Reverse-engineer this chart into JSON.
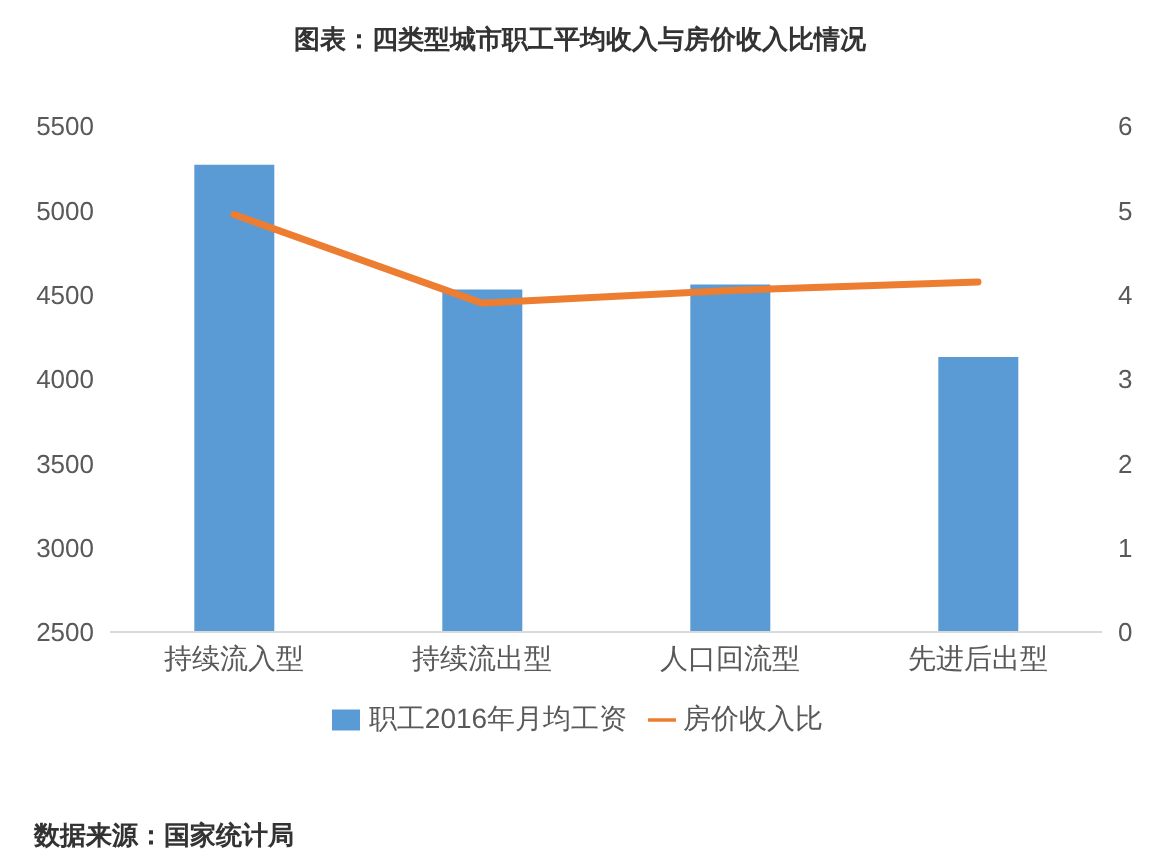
{
  "chart_data": {
    "type": "bar",
    "title": "图表：四类型城市职工平均收入与房价收入比情况",
    "categories": [
      "持续流入型",
      "持续流出型",
      "人口回流型",
      "先进后出型"
    ],
    "series": [
      {
        "name": "职工2016年月均工资",
        "color": "#5b9bd5",
        "values": [
          5270,
          4530,
          4560,
          4130
        ]
      },
      {
        "name": "房价收入比",
        "type": "line",
        "axis": "y2",
        "color": "#ed7d31",
        "values": [
          4.95,
          3.9,
          4.05,
          4.15
        ]
      }
    ],
    "ylim": [
      2500,
      5500
    ],
    "yticks": [
      2500,
      3000,
      3500,
      4000,
      4500,
      5000,
      5500
    ],
    "y2lim": [
      0,
      6
    ],
    "y2ticks": [
      0,
      1,
      2,
      3,
      4,
      5,
      6
    ],
    "grid": false,
    "legend": "bottom",
    "marker": "none",
    "line_style": "solid",
    "annotations": [
      "数据来源：国家统计局"
    ]
  }
}
